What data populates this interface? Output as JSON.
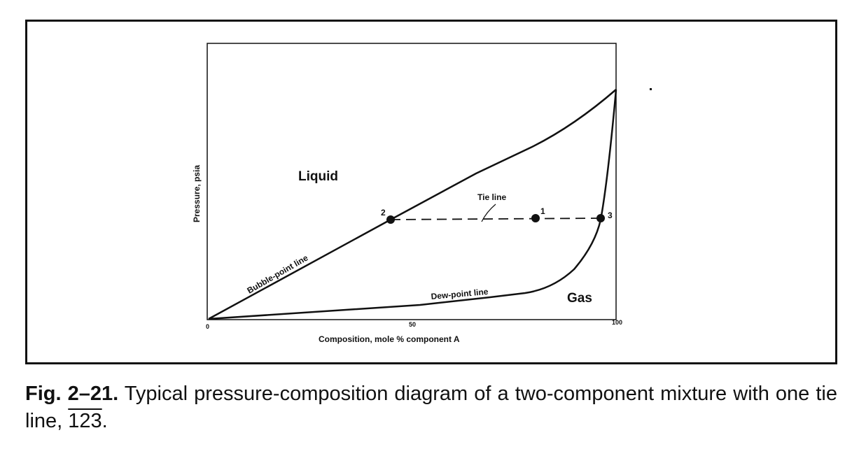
{
  "diagram": {
    "y_axis_label": "Pressure, psia",
    "x_axis_label": "Composition, mole % component A",
    "x_ticks": [
      "0",
      "50",
      "100"
    ],
    "regions": {
      "liquid": "Liquid",
      "gas": "Gas"
    },
    "curves": {
      "bubble_point": "Bubble-point line",
      "dew_point": "Dew-point line"
    },
    "tie_line_label": "Tie line",
    "points": [
      {
        "label": "2",
        "x": 45
      },
      {
        "label": "1",
        "x": 80
      },
      {
        "label": "3",
        "x": 96
      }
    ]
  },
  "caption": {
    "number": "Fig. 2–21.",
    "text_before_overline": " Typical pressure-composition diagram of a two-component mixture with one tie line, ",
    "tie_line_name": "123",
    "text_end": "."
  }
}
